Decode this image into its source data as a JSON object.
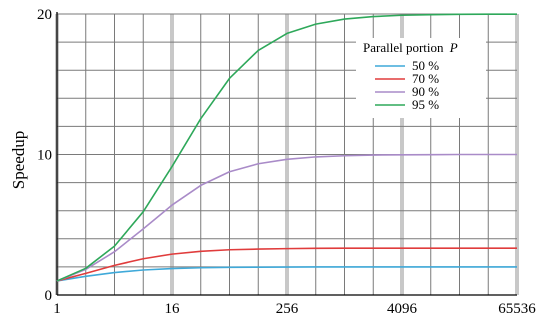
{
  "chart_data": {
    "type": "line",
    "title": "",
    "xlabel": "",
    "ylabel": "Speedup",
    "x_scale": "log2",
    "xlim": [
      1,
      65536
    ],
    "ylim": [
      0,
      20
    ],
    "grid": true,
    "x_tick_labels": [
      {
        "value": 1,
        "label": "1"
      },
      {
        "value": 16,
        "label": "16"
      },
      {
        "value": 256,
        "label": "256"
      },
      {
        "value": 4096,
        "label": "4096"
      },
      {
        "value": 65536,
        "label": "65536"
      }
    ],
    "y_tick_labels": [
      {
        "value": 0,
        "label": "0"
      },
      {
        "value": 10,
        "label": "10"
      },
      {
        "value": 20,
        "label": "20"
      }
    ],
    "legend": {
      "title": "Parallel portion",
      "title_variable": "P",
      "placement": "top-right"
    },
    "x": [
      1,
      2,
      4,
      8,
      16,
      32,
      64,
      128,
      256,
      512,
      1024,
      2048,
      4096,
      8192,
      16384,
      32768,
      65536
    ],
    "series": [
      {
        "name": "50 %",
        "color": "#3fa9d9",
        "values": [
          1.0,
          1.33,
          1.6,
          1.78,
          1.88,
          1.94,
          1.97,
          1.98,
          1.99,
          2.0,
          2.0,
          2.0,
          2.0,
          2.0,
          2.0,
          2.0,
          2.0
        ]
      },
      {
        "name": "70 %",
        "color": "#e03c3c",
        "values": [
          1.0,
          1.54,
          2.11,
          2.58,
          2.91,
          3.11,
          3.22,
          3.27,
          3.3,
          3.32,
          3.33,
          3.33,
          3.33,
          3.33,
          3.33,
          3.33,
          3.33
        ]
      },
      {
        "name": "90 %",
        "color": "#a98bc8",
        "values": [
          1.0,
          1.82,
          3.08,
          4.71,
          6.4,
          7.8,
          8.77,
          9.34,
          9.66,
          9.83,
          9.91,
          9.96,
          9.98,
          9.99,
          10.0,
          10.0,
          10.0
        ]
      },
      {
        "name": "95 %",
        "color": "#2ea85a",
        "values": [
          1.0,
          1.9,
          3.48,
          5.93,
          9.14,
          12.55,
          15.42,
          17.41,
          18.62,
          19.28,
          19.64,
          19.82,
          19.91,
          19.95,
          19.98,
          19.99,
          19.99
        ]
      }
    ]
  }
}
